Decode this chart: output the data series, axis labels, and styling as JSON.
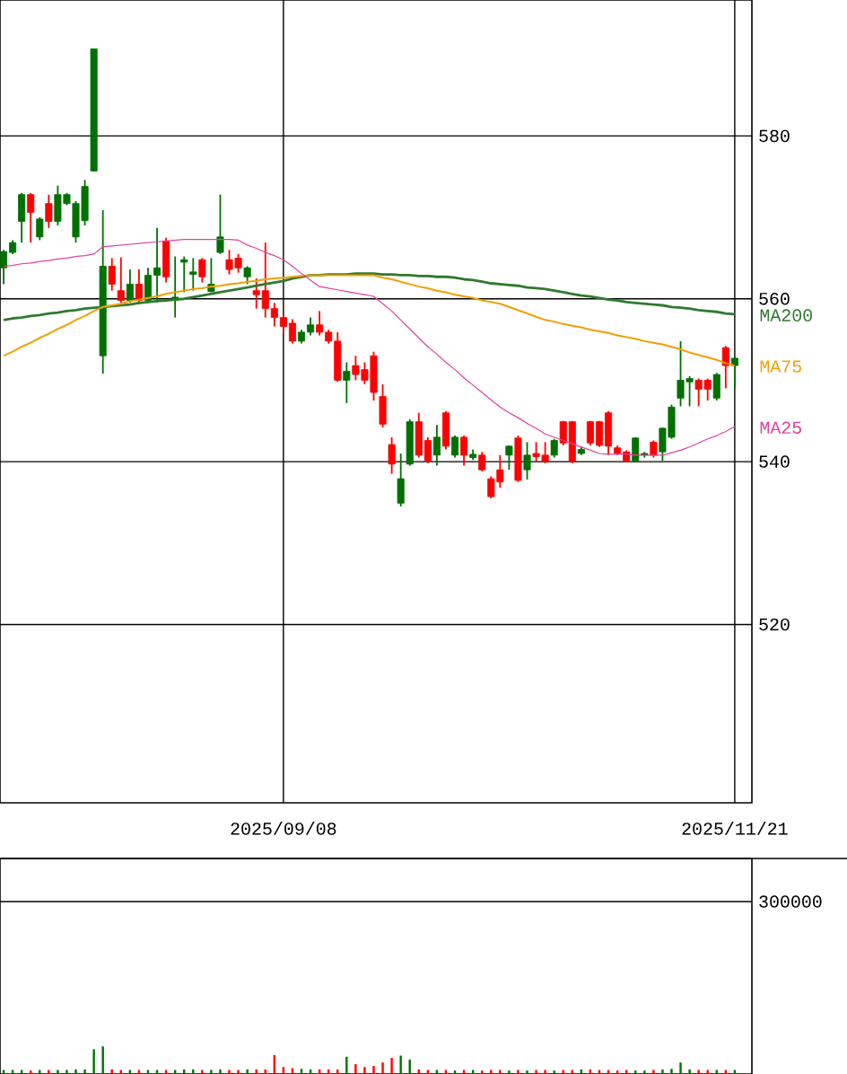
{
  "chart_data": [
    {
      "type": "candlestick",
      "categories": [
        null,
        null,
        null,
        null,
        null,
        null,
        null,
        null,
        null,
        null,
        null,
        null,
        null,
        null,
        null,
        null,
        null,
        null,
        null,
        null,
        null,
        null,
        null,
        null,
        null,
        null,
        null,
        null,
        null,
        null,
        null,
        "2025/09/08",
        null,
        null,
        null,
        null,
        null,
        null,
        null,
        null,
        null,
        null,
        null,
        null,
        null,
        null,
        null,
        null,
        null,
        null,
        null,
        null,
        null,
        null,
        null,
        null,
        null,
        null,
        null,
        null,
        null,
        null,
        null,
        null,
        null,
        null,
        null,
        null,
        null,
        null,
        null,
        null,
        null,
        null,
        null,
        null,
        null,
        null,
        null,
        null,
        null,
        "2025/11/21"
      ],
      "ohlc": [
        [
          563.8,
          566.0,
          561.8,
          565.8
        ],
        [
          565.7,
          567.2,
          565.5,
          566.9
        ],
        [
          569.5,
          573.0,
          566.9,
          572.8
        ],
        [
          572.8,
          573.0,
          566.9,
          570.6
        ],
        [
          567.6,
          570.0,
          567.2,
          569.8
        ],
        [
          571.7,
          572.8,
          568.7,
          569.5
        ],
        [
          569.5,
          573.9,
          569.0,
          572.8
        ],
        [
          571.7,
          573.0,
          571.5,
          572.8
        ],
        [
          567.6,
          572.0,
          566.9,
          571.7
        ],
        [
          569.6,
          574.6,
          569.0,
          573.8
        ],
        [
          575.7,
          590.7,
          575.7,
          590.7
        ],
        [
          553.0,
          570.9,
          550.8,
          564.0
        ],
        [
          564.0,
          565.0,
          561.0,
          561.8
        ],
        [
          561.0,
          565.1,
          559.5,
          559.8
        ],
        [
          559.8,
          563.6,
          559.5,
          561.8
        ],
        [
          561.8,
          563.6,
          559.3,
          559.8
        ],
        [
          559.8,
          563.8,
          559.5,
          562.9
        ],
        [
          562.9,
          568.7,
          559.6,
          563.8
        ],
        [
          567.1,
          567.5,
          562.0,
          562.7
        ],
        [
          560.0,
          565.2,
          557.7,
          560.2
        ],
        [
          564.5,
          565.2,
          560.8,
          564.8
        ],
        [
          563.0,
          565.0,
          561.0,
          563.3
        ],
        [
          564.8,
          565.0,
          562.0,
          562.7
        ],
        [
          560.9,
          565.0,
          560.8,
          561.8
        ],
        [
          565.7,
          572.8,
          565.5,
          567.6
        ],
        [
          564.8,
          566.0,
          563.0,
          563.6
        ],
        [
          565.0,
          565.5,
          563.2,
          563.8
        ],
        [
          562.7,
          564.0,
          561.8,
          563.8
        ],
        [
          561.0,
          562.5,
          558.8,
          560.5
        ],
        [
          561.0,
          566.9,
          557.7,
          558.8
        ],
        [
          558.8,
          559.5,
          556.6,
          557.7
        ],
        [
          557.7,
          558.0,
          556.0,
          556.6
        ],
        [
          557.0,
          557.5,
          554.5,
          554.8
        ],
        [
          554.8,
          556.2,
          554.5,
          555.9
        ],
        [
          555.9,
          557.7,
          555.5,
          556.8
        ],
        [
          556.8,
          558.5,
          555.5,
          555.9
        ],
        [
          555.9,
          556.2,
          554.5,
          554.8
        ],
        [
          554.8,
          555.9,
          549.8,
          550.0
        ],
        [
          550.0,
          552.2,
          547.2,
          551.1
        ],
        [
          551.8,
          553.0,
          550.0,
          550.7
        ],
        [
          551.3,
          552.2,
          549.5,
          550.0
        ],
        [
          553.0,
          553.5,
          547.5,
          548.5
        ],
        [
          548.0,
          549.5,
          544.2,
          544.6
        ],
        [
          542.1,
          543.0,
          538.5,
          539.7
        ],
        [
          534.9,
          541.0,
          534.5,
          537.9
        ],
        [
          539.7,
          545.2,
          539.5,
          544.9
        ],
        [
          544.9,
          546.0,
          540.5,
          540.8
        ],
        [
          542.6,
          543.0,
          539.8,
          540.1
        ],
        [
          540.8,
          544.5,
          539.5,
          543.0
        ],
        [
          546.0,
          546.2,
          541.5,
          541.9
        ],
        [
          540.8,
          543.2,
          540.5,
          543.0
        ],
        [
          543.0,
          543.2,
          539.5,
          540.8
        ],
        [
          540.5,
          541.5,
          540.2,
          540.9
        ],
        [
          540.8,
          541.2,
          538.8,
          539.0
        ],
        [
          537.9,
          538.2,
          535.5,
          535.7
        ],
        [
          539.0,
          540.8,
          536.8,
          537.5
        ],
        [
          540.8,
          542.0,
          539.0,
          541.9
        ],
        [
          542.9,
          543.2,
          537.5,
          537.7
        ],
        [
          539.0,
          542.4,
          537.8,
          540.8
        ],
        [
          541.0,
          542.4,
          540.0,
          540.6
        ],
        [
          540.8,
          542.4,
          539.8,
          540.0
        ],
        [
          540.8,
          542.8,
          540.5,
          542.6
        ],
        [
          544.9,
          545.0,
          542.0,
          542.3
        ],
        [
          544.9,
          545.0,
          539.8,
          540.0
        ],
        [
          541.0,
          541.8,
          540.8,
          541.5
        ],
        [
          544.9,
          545.0,
          542.0,
          542.3
        ],
        [
          544.9,
          545.0,
          541.8,
          542.0
        ],
        [
          546.0,
          546.2,
          540.8,
          541.9
        ],
        [
          541.7,
          542.0,
          540.8,
          541.0
        ],
        [
          541.2,
          541.4,
          539.9,
          540.1
        ],
        [
          540.1,
          543.0,
          539.9,
          542.9
        ],
        [
          540.8,
          541.2,
          540.5,
          541.0
        ],
        [
          542.4,
          542.6,
          540.5,
          540.8
        ],
        [
          541.2,
          544.2,
          540.1,
          544.1
        ],
        [
          543.0,
          547.0,
          542.8,
          546.7
        ],
        [
          547.8,
          554.8,
          546.8,
          550.0
        ],
        [
          549.8,
          550.5,
          546.8,
          550.2
        ],
        [
          550.0,
          550.2,
          546.8,
          548.9
        ],
        [
          550.0,
          550.2,
          547.5,
          548.9
        ],
        [
          547.8,
          550.9,
          547.5,
          550.7
        ],
        [
          554.0,
          554.2,
          549.0,
          551.8
        ],
        [
          551.8,
          552.9,
          549.0,
          552.7
        ]
      ],
      "colors": [
        "#007000",
        "#007000",
        "#007000",
        "#ff0000",
        "#007000",
        "#ff0000",
        "#007000",
        "#007000",
        "#007000",
        "#007000",
        "#007000",
        "#007000",
        "#ff0000",
        "#ff0000",
        "#007000",
        "#ff0000",
        "#007000",
        "#007000",
        "#ff0000",
        "#007000",
        "#007000",
        "#007000",
        "#ff0000",
        "#007000",
        "#007000",
        "#ff0000",
        "#ff0000",
        "#007000",
        "#ff0000",
        "#ff0000",
        "#ff0000",
        "#ff0000",
        "#ff0000",
        "#007000",
        "#007000",
        "#ff0000",
        "#ff0000",
        "#ff0000",
        "#007000",
        "#ff0000",
        "#ff0000",
        "#ff0000",
        "#ff0000",
        "#ff0000",
        "#007000",
        "#007000",
        "#ff0000",
        "#ff0000",
        "#007000",
        "#ff0000",
        "#007000",
        "#ff0000",
        "#007000",
        "#ff0000",
        "#ff0000",
        "#ff0000",
        "#007000",
        "#ff0000",
        "#007000",
        "#ff0000",
        "#ff0000",
        "#007000",
        "#ff0000",
        "#ff0000",
        "#007000",
        "#ff0000",
        "#ff0000",
        "#ff0000",
        "#ff0000",
        "#ff0000",
        "#007000",
        "#007000",
        "#ff0000",
        "#007000",
        "#007000",
        "#007000",
        "#007000",
        "#ff0000",
        "#ff0000",
        "#007000",
        "#ff0000",
        "#007000"
      ],
      "series": [
        {
          "type": "line",
          "name": "MA200",
          "color": "#2f7a2f",
          "values": [
            557.4,
            557.6,
            557.7,
            557.9,
            558.0,
            558.2,
            558.3,
            558.5,
            558.6,
            558.8,
            558.9,
            559.0,
            559.1,
            559.2,
            559.3,
            559.5,
            559.6,
            559.7,
            559.8,
            559.9,
            560.0,
            560.2,
            560.4,
            560.6,
            560.8,
            561.0,
            561.2,
            561.4,
            561.6,
            561.8,
            562.0,
            562.2,
            562.5,
            562.7,
            562.9,
            562.9,
            563.0,
            563.0,
            563.0,
            563.1,
            563.1,
            563.1,
            563.0,
            563.0,
            562.9,
            562.9,
            562.8,
            562.8,
            562.7,
            562.7,
            562.6,
            562.4,
            562.3,
            562.1,
            561.9,
            561.8,
            561.7,
            561.6,
            561.4,
            561.3,
            561.2,
            561.0,
            560.8,
            560.6,
            560.4,
            560.3,
            560.1,
            559.9,
            559.8,
            559.6,
            559.5,
            559.4,
            559.3,
            559.2,
            559.0,
            558.9,
            558.8,
            558.6,
            558.5,
            558.4,
            558.2,
            558.1
          ]
        },
        {
          "type": "line",
          "name": "MA75",
          "color": "#f0a000",
          "values": [
            553.0,
            553.5,
            554.1,
            554.6,
            555.2,
            555.7,
            556.3,
            556.8,
            557.4,
            557.9,
            558.5,
            559.0,
            559.2,
            559.4,
            559.7,
            559.9,
            560.1,
            560.3,
            560.6,
            560.8,
            561.0,
            561.2,
            561.3,
            561.5,
            561.6,
            561.8,
            561.9,
            562.1,
            562.2,
            562.4,
            562.5,
            562.6,
            562.7,
            562.8,
            562.9,
            562.9,
            562.9,
            562.9,
            562.9,
            562.9,
            562.9,
            562.9,
            562.6,
            562.4,
            562.1,
            561.8,
            561.5,
            561.3,
            561.0,
            560.8,
            560.5,
            560.3,
            560.1,
            559.8,
            559.6,
            559.4,
            559.0,
            558.6,
            558.2,
            557.8,
            557.4,
            557.2,
            556.9,
            556.7,
            556.5,
            556.2,
            556.0,
            555.8,
            555.5,
            555.3,
            555.1,
            554.8,
            554.6,
            554.4,
            554.1,
            553.8,
            553.4,
            553.1,
            552.8,
            552.5,
            552.1,
            551.8
          ]
        },
        {
          "type": "line",
          "name": "MA25",
          "color": "#e040a0",
          "values": [
            564.0,
            564.1,
            564.3,
            564.4,
            564.6,
            564.7,
            564.9,
            565.0,
            565.2,
            565.3,
            565.5,
            566.4,
            566.5,
            566.6,
            566.7,
            566.8,
            566.9,
            567.0,
            567.1,
            567.2,
            567.3,
            567.3,
            567.3,
            567.3,
            567.3,
            567.3,
            567.2,
            566.6,
            566.2,
            565.7,
            565.3,
            564.8,
            564.0,
            563.1,
            562.3,
            561.5,
            561.3,
            561.1,
            560.9,
            560.7,
            560.5,
            560.3,
            559.4,
            558.5,
            557.4,
            556.3,
            555.2,
            554.1,
            553.2,
            552.2,
            551.3,
            550.3,
            549.4,
            548.5,
            547.6,
            546.7,
            546.0,
            545.4,
            544.7,
            544.1,
            543.4,
            543.0,
            542.6,
            542.2,
            541.8,
            541.4,
            541.0,
            540.9,
            540.9,
            540.9,
            540.8,
            540.8,
            540.8,
            540.8,
            541.1,
            541.4,
            541.8,
            542.3,
            542.8,
            543.2,
            543.7,
            544.3
          ]
        }
      ],
      "ylim": [
        498.1,
        596.7
      ],
      "yticks": [
        520,
        540,
        560,
        580
      ],
      "grid": true
    },
    {
      "type": "bar",
      "categories": [
        null,
        null,
        null,
        null,
        null,
        null,
        null,
        null,
        null,
        null,
        null,
        null,
        null,
        null,
        null,
        null,
        null,
        null,
        null,
        null,
        null,
        null,
        null,
        null,
        null,
        null,
        null,
        null,
        null,
        null,
        null,
        null,
        null,
        null,
        null,
        null,
        null,
        null,
        null,
        null,
        null,
        null,
        null,
        null,
        null,
        null,
        null,
        null,
        null,
        null,
        null,
        null,
        null,
        null,
        null,
        null,
        null,
        null,
        null,
        null,
        null,
        null,
        null,
        null,
        null,
        null,
        null,
        null,
        null,
        null,
        null,
        null,
        null,
        null,
        null,
        null,
        null,
        null,
        null,
        null,
        null,
        null
      ],
      "values": [
        7000,
        7000,
        7000,
        6000,
        7000,
        7000,
        7000,
        7000,
        8000,
        8000,
        43000,
        48000,
        8000,
        7000,
        7000,
        7000,
        7000,
        7000,
        7000,
        7000,
        8000,
        8000,
        7000,
        7000,
        8000,
        7000,
        7000,
        8000,
        8000,
        8000,
        33000,
        12000,
        10000,
        9000,
        8000,
        8000,
        8000,
        8000,
        30000,
        17000,
        12000,
        14000,
        20000,
        28000,
        32000,
        25000,
        8000,
        7000,
        7000,
        7000,
        6000,
        7000,
        7000,
        6000,
        7000,
        7000,
        6000,
        7000,
        6000,
        7000,
        7000,
        6000,
        7000,
        7000,
        8000,
        8000,
        7000,
        7000,
        6000,
        7000,
        6000,
        6000,
        7000,
        8000,
        9000,
        20000,
        8000,
        7000,
        7000,
        7000,
        7000,
        7000
      ],
      "colors": [
        "#007000",
        "#007000",
        "#007000",
        "#ff0000",
        "#007000",
        "#ff0000",
        "#007000",
        "#007000",
        "#007000",
        "#007000",
        "#007000",
        "#007000",
        "#ff0000",
        "#ff0000",
        "#007000",
        "#ff0000",
        "#007000",
        "#007000",
        "#ff0000",
        "#007000",
        "#007000",
        "#007000",
        "#ff0000",
        "#007000",
        "#007000",
        "#ff0000",
        "#ff0000",
        "#007000",
        "#ff0000",
        "#ff0000",
        "#ff0000",
        "#ff0000",
        "#ff0000",
        "#007000",
        "#007000",
        "#ff0000",
        "#ff0000",
        "#ff0000",
        "#007000",
        "#ff0000",
        "#ff0000",
        "#ff0000",
        "#ff0000",
        "#ff0000",
        "#007000",
        "#007000",
        "#ff0000",
        "#ff0000",
        "#007000",
        "#ff0000",
        "#007000",
        "#ff0000",
        "#007000",
        "#ff0000",
        "#ff0000",
        "#ff0000",
        "#007000",
        "#ff0000",
        "#007000",
        "#ff0000",
        "#ff0000",
        "#007000",
        "#ff0000",
        "#ff0000",
        "#007000",
        "#ff0000",
        "#ff0000",
        "#ff0000",
        "#ff0000",
        "#ff0000",
        "#007000",
        "#007000",
        "#ff0000",
        "#007000",
        "#007000",
        "#007000",
        "#007000",
        "#ff0000",
        "#ff0000",
        "#007000",
        "#ff0000",
        "#007000"
      ],
      "ylim": [
        0,
        375000
      ],
      "yticks": [
        300000
      ],
      "grid": "y",
      "tick_labels": "y"
    }
  ]
}
